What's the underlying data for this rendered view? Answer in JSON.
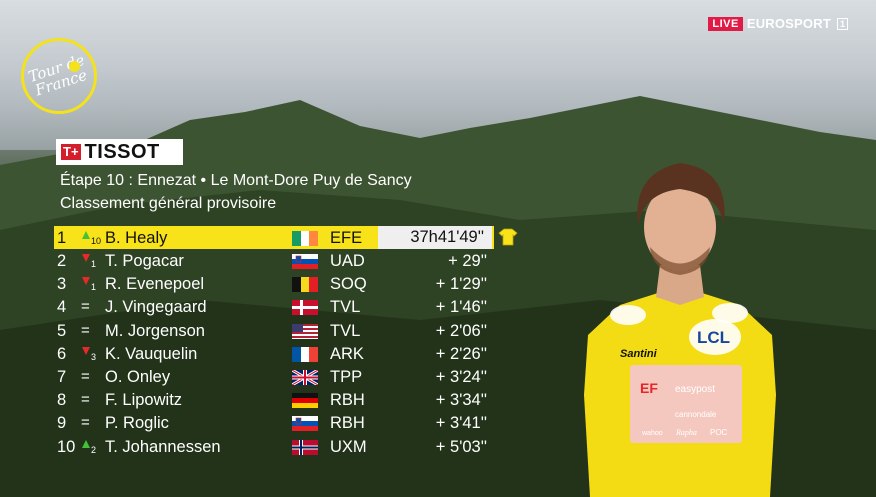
{
  "broadcast": {
    "live_badge": "LIVE",
    "channel": "EUROSPORT",
    "channel_number": "1"
  },
  "event_logo": {
    "line1": "Tour de",
    "line2": "France"
  },
  "sponsor": {
    "mark": "T+",
    "name": "TISSOT"
  },
  "stage": {
    "title": "Étape 10 : Ennezat • Le Mont-Dore Puy de Sancy",
    "classification": "Classement général provisoire"
  },
  "colors": {
    "leader_yellow": "#f8e21a",
    "movement_up": "#43c238",
    "movement_down": "#e52a2a",
    "live_red": "#e21a46"
  },
  "standings": [
    {
      "rank": "1",
      "movement": "up",
      "movement_value": "10",
      "rider": "B. Healy",
      "flag": "ireland-flag",
      "team": "EFE",
      "gap": "37h41'49''",
      "leader": true
    },
    {
      "rank": "2",
      "movement": "down",
      "movement_value": "1",
      "rider": "T. Pogacar",
      "flag": "slovenia-flag",
      "team": "UAD",
      "gap": "+ 29''"
    },
    {
      "rank": "3",
      "movement": "down",
      "movement_value": "1",
      "rider": "R. Evenepoel",
      "flag": "belgium-flag",
      "team": "SOQ",
      "gap": "+ 1'29''"
    },
    {
      "rank": "4",
      "movement": "same",
      "movement_value": "=",
      "rider": "J. Vingegaard",
      "flag": "denmark-flag",
      "team": "TVL",
      "gap": "+ 1'46''"
    },
    {
      "rank": "5",
      "movement": "same",
      "movement_value": "=",
      "rider": "M. Jorgenson",
      "flag": "usa-flag",
      "team": "TVL",
      "gap": "+ 2'06''"
    },
    {
      "rank": "6",
      "movement": "down",
      "movement_value": "3",
      "rider": "K. Vauquelin",
      "flag": "france-flag",
      "team": "ARK",
      "gap": "+ 2'26''"
    },
    {
      "rank": "7",
      "movement": "same",
      "movement_value": "=",
      "rider": "O. Onley",
      "flag": "uk-flag",
      "team": "TPP",
      "gap": "+ 3'24''"
    },
    {
      "rank": "8",
      "movement": "same",
      "movement_value": "=",
      "rider": "F. Lipowitz",
      "flag": "germany-flag",
      "team": "RBH",
      "gap": "+ 3'34''"
    },
    {
      "rank": "9",
      "movement": "same",
      "movement_value": "=",
      "rider": "P. Roglic",
      "flag": "slovenia-flag",
      "team": "RBH",
      "gap": "+ 3'41''"
    },
    {
      "rank": "10",
      "movement": "up",
      "movement_value": "2",
      "rider": "T. Johannessen",
      "flag": "norway-flag",
      "team": "UXM",
      "gap": "+ 5'03''"
    }
  ],
  "jersey_icon": "yellow-jersey-icon",
  "rider_jersey": {
    "chest_sponsor": "LCL",
    "team_logo": "EF",
    "team_sponsor": "easypost",
    "sleeve_brand": "Santini",
    "patch_1": "cannondale",
    "patch_2": "wahoo",
    "patch_3": "Rapha",
    "patch_4": "POC"
  }
}
